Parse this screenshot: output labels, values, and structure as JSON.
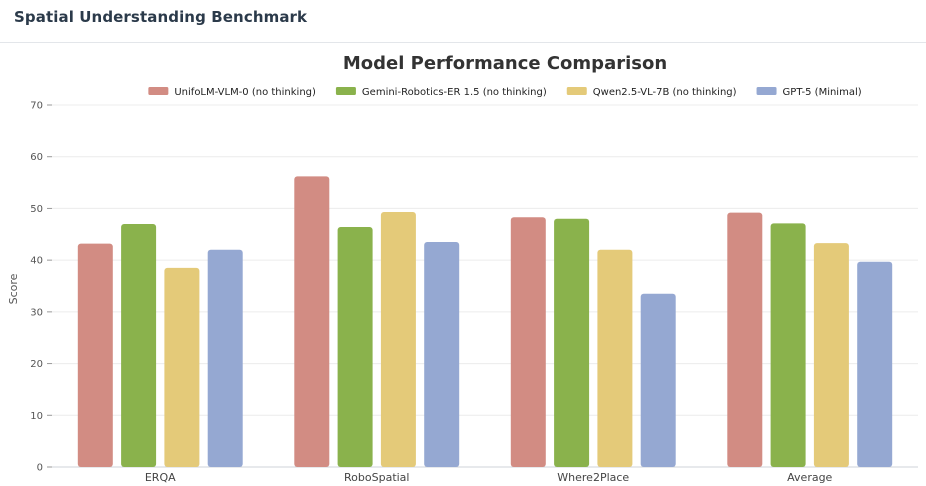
{
  "header": {
    "title": "Spatial Understanding Benchmark"
  },
  "chart_data": {
    "type": "bar",
    "title": "Model Performance Comparison",
    "xlabel": "",
    "ylabel": "Score",
    "ylim": [
      0,
      70
    ],
    "yticks": [
      0,
      10,
      20,
      30,
      40,
      50,
      60,
      70
    ],
    "grid": true,
    "legend_position": "top",
    "categories": [
      "ERQA",
      "RoboSpatial",
      "Where2Place",
      "Average"
    ],
    "series": [
      {
        "name": "UnifoLM-VLM-0 (no thinking)",
        "color": "#d28c83",
        "values": [
          43.2,
          56.2,
          48.3,
          49.2
        ]
      },
      {
        "name": "Gemini-Robotics-ER 1.5 (no thinking)",
        "color": "#8ab24c",
        "values": [
          47.0,
          46.4,
          48.0,
          47.1
        ]
      },
      {
        "name": "Qwen2.5-VL-7B (no thinking)",
        "color": "#e4ca79",
        "values": [
          38.5,
          49.3,
          42.0,
          43.3
        ]
      },
      {
        "name": "GPT-5 (Minimal)",
        "color": "#95a8d2",
        "values": [
          42.0,
          43.5,
          33.5,
          39.7
        ]
      }
    ]
  }
}
